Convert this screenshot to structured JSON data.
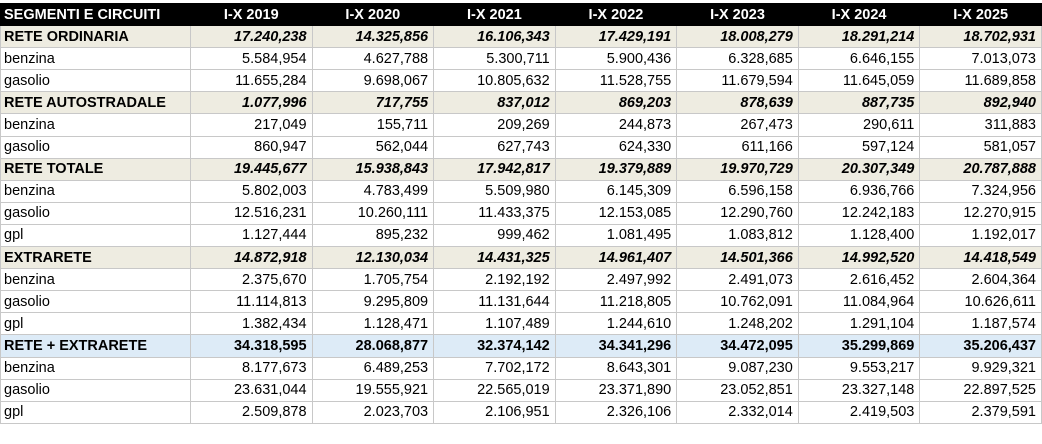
{
  "table": {
    "header": [
      "SEGMENTI E CIRCUITI",
      "I-X 2019",
      "I-X 2020",
      "I-X 2021",
      "I-X 2022",
      "I-X 2023",
      "I-X 2024",
      "I-X 2025"
    ],
    "sections": [
      {
        "title": "RETE ORDINARIA",
        "values": [
          "17.240,238",
          "14.325,856",
          "16.106,343",
          "17.429,191",
          "18.008,279",
          "18.291,214",
          "18.702,931"
        ],
        "rows": [
          [
            "benzina",
            "5.584,954",
            "4.627,788",
            "5.300,711",
            "5.900,436",
            "6.328,685",
            "6.646,155",
            "7.013,073"
          ],
          [
            "gasolio",
            "11.655,284",
            "9.698,067",
            "10.805,632",
            "11.528,755",
            "11.679,594",
            "11.645,059",
            "11.689,858"
          ]
        ]
      },
      {
        "title": "RETE AUTOSTRADALE",
        "values": [
          "1.077,996",
          "717,755",
          "837,012",
          "869,203",
          "878,639",
          "887,735",
          "892,940"
        ],
        "rows": [
          [
            "benzina",
            "217,049",
            "155,711",
            "209,269",
            "244,873",
            "267,473",
            "290,611",
            "311,883"
          ],
          [
            "gasolio",
            "860,947",
            "562,044",
            "627,743",
            "624,330",
            "611,166",
            "597,124",
            "581,057"
          ]
        ]
      },
      {
        "title": "RETE TOTALE",
        "values": [
          "19.445,677",
          "15.938,843",
          "17.942,817",
          "19.379,889",
          "19.970,729",
          "20.307,349",
          "20.787,888"
        ],
        "rows": [
          [
            "benzina",
            "5.802,003",
            "4.783,499",
            "5.509,980",
            "6.145,309",
            "6.596,158",
            "6.936,766",
            "7.324,956"
          ],
          [
            "gasolio",
            "12.516,231",
            "10.260,111",
            "11.433,375",
            "12.153,085",
            "12.290,760",
            "12.242,183",
            "12.270,915"
          ],
          [
            "gpl",
            "1.127,444",
            "895,232",
            "999,462",
            "1.081,495",
            "1.083,812",
            "1.128,400",
            "1.192,017"
          ]
        ]
      },
      {
        "title": "EXTRARETE",
        "values": [
          "14.872,918",
          "12.130,034",
          "14.431,325",
          "14.961,407",
          "14.501,366",
          "14.992,520",
          "14.418,549"
        ],
        "rows": [
          [
            "benzina",
            "2.375,670",
            "1.705,754",
            "2.192,192",
            "2.497,992",
            "2.491,073",
            "2.616,452",
            "2.604,364"
          ],
          [
            "gasolio",
            "11.114,813",
            "9.295,809",
            "11.131,644",
            "11.218,805",
            "10.762,091",
            "11.084,964",
            "10.626,611"
          ],
          [
            "gpl",
            "1.382,434",
            "1.128,471",
            "1.107,489",
            "1.244,610",
            "1.248,202",
            "1.291,104",
            "1.187,574"
          ]
        ]
      },
      {
        "title": "RETE + EXTRARETE",
        "values": [
          "34.318,595",
          "28.068,877",
          "32.374,142",
          "34.341,296",
          "34.472,095",
          "35.299,869",
          "35.206,437"
        ],
        "rows": [
          [
            "benzina",
            "8.177,673",
            "6.489,253",
            "7.702,172",
            "8.643,301",
            "9.087,230",
            "9.553,217",
            "9.929,321"
          ],
          [
            "gasolio",
            "23.631,044",
            "19.555,921",
            "22.565,019",
            "23.371,890",
            "23.052,851",
            "23.327,148",
            "22.897,525"
          ],
          [
            "gpl",
            "2.509,878",
            "2.023,703",
            "2.106,951",
            "2.326,106",
            "2.332,014",
            "2.419,503",
            "2.379,591"
          ]
        ]
      }
    ]
  }
}
